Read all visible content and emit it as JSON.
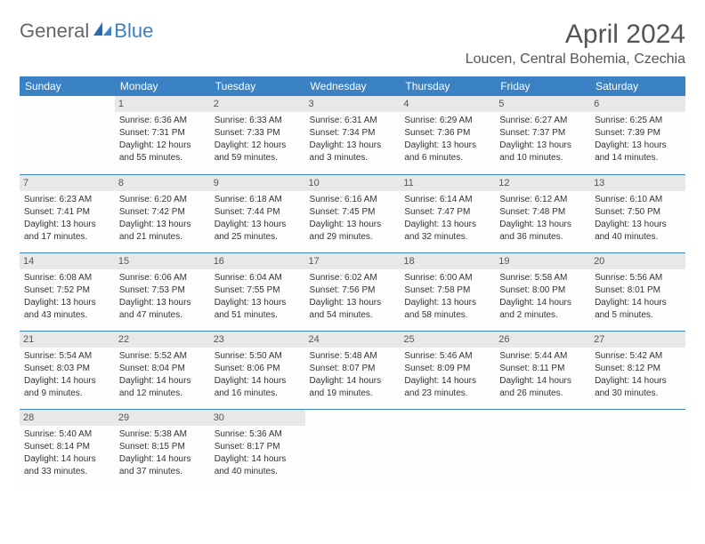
{
  "logo": {
    "textGeneral": "General",
    "textBlue": "Blue"
  },
  "title": "April 2024",
  "location": "Loucen, Central Bohemia, Czechia",
  "colors": {
    "headerBg": "#3b82c4",
    "headerText": "#ffffff",
    "dayNumBg": "#e8e8e8",
    "bodyText": "#333333",
    "titleText": "#555555"
  },
  "dayHeaders": [
    "Sunday",
    "Monday",
    "Tuesday",
    "Wednesday",
    "Thursday",
    "Friday",
    "Saturday"
  ],
  "weeks": [
    [
      null,
      {
        "n": "1",
        "sr": "Sunrise: 6:36 AM",
        "ss": "Sunset: 7:31 PM",
        "d1": "Daylight: 12 hours",
        "d2": "and 55 minutes."
      },
      {
        "n": "2",
        "sr": "Sunrise: 6:33 AM",
        "ss": "Sunset: 7:33 PM",
        "d1": "Daylight: 12 hours",
        "d2": "and 59 minutes."
      },
      {
        "n": "3",
        "sr": "Sunrise: 6:31 AM",
        "ss": "Sunset: 7:34 PM",
        "d1": "Daylight: 13 hours",
        "d2": "and 3 minutes."
      },
      {
        "n": "4",
        "sr": "Sunrise: 6:29 AM",
        "ss": "Sunset: 7:36 PM",
        "d1": "Daylight: 13 hours",
        "d2": "and 6 minutes."
      },
      {
        "n": "5",
        "sr": "Sunrise: 6:27 AM",
        "ss": "Sunset: 7:37 PM",
        "d1": "Daylight: 13 hours",
        "d2": "and 10 minutes."
      },
      {
        "n": "6",
        "sr": "Sunrise: 6:25 AM",
        "ss": "Sunset: 7:39 PM",
        "d1": "Daylight: 13 hours",
        "d2": "and 14 minutes."
      }
    ],
    [
      {
        "n": "7",
        "sr": "Sunrise: 6:23 AM",
        "ss": "Sunset: 7:41 PM",
        "d1": "Daylight: 13 hours",
        "d2": "and 17 minutes."
      },
      {
        "n": "8",
        "sr": "Sunrise: 6:20 AM",
        "ss": "Sunset: 7:42 PM",
        "d1": "Daylight: 13 hours",
        "d2": "and 21 minutes."
      },
      {
        "n": "9",
        "sr": "Sunrise: 6:18 AM",
        "ss": "Sunset: 7:44 PM",
        "d1": "Daylight: 13 hours",
        "d2": "and 25 minutes."
      },
      {
        "n": "10",
        "sr": "Sunrise: 6:16 AM",
        "ss": "Sunset: 7:45 PM",
        "d1": "Daylight: 13 hours",
        "d2": "and 29 minutes."
      },
      {
        "n": "11",
        "sr": "Sunrise: 6:14 AM",
        "ss": "Sunset: 7:47 PM",
        "d1": "Daylight: 13 hours",
        "d2": "and 32 minutes."
      },
      {
        "n": "12",
        "sr": "Sunrise: 6:12 AM",
        "ss": "Sunset: 7:48 PM",
        "d1": "Daylight: 13 hours",
        "d2": "and 36 minutes."
      },
      {
        "n": "13",
        "sr": "Sunrise: 6:10 AM",
        "ss": "Sunset: 7:50 PM",
        "d1": "Daylight: 13 hours",
        "d2": "and 40 minutes."
      }
    ],
    [
      {
        "n": "14",
        "sr": "Sunrise: 6:08 AM",
        "ss": "Sunset: 7:52 PM",
        "d1": "Daylight: 13 hours",
        "d2": "and 43 minutes."
      },
      {
        "n": "15",
        "sr": "Sunrise: 6:06 AM",
        "ss": "Sunset: 7:53 PM",
        "d1": "Daylight: 13 hours",
        "d2": "and 47 minutes."
      },
      {
        "n": "16",
        "sr": "Sunrise: 6:04 AM",
        "ss": "Sunset: 7:55 PM",
        "d1": "Daylight: 13 hours",
        "d2": "and 51 minutes."
      },
      {
        "n": "17",
        "sr": "Sunrise: 6:02 AM",
        "ss": "Sunset: 7:56 PM",
        "d1": "Daylight: 13 hours",
        "d2": "and 54 minutes."
      },
      {
        "n": "18",
        "sr": "Sunrise: 6:00 AM",
        "ss": "Sunset: 7:58 PM",
        "d1": "Daylight: 13 hours",
        "d2": "and 58 minutes."
      },
      {
        "n": "19",
        "sr": "Sunrise: 5:58 AM",
        "ss": "Sunset: 8:00 PM",
        "d1": "Daylight: 14 hours",
        "d2": "and 2 minutes."
      },
      {
        "n": "20",
        "sr": "Sunrise: 5:56 AM",
        "ss": "Sunset: 8:01 PM",
        "d1": "Daylight: 14 hours",
        "d2": "and 5 minutes."
      }
    ],
    [
      {
        "n": "21",
        "sr": "Sunrise: 5:54 AM",
        "ss": "Sunset: 8:03 PM",
        "d1": "Daylight: 14 hours",
        "d2": "and 9 minutes."
      },
      {
        "n": "22",
        "sr": "Sunrise: 5:52 AM",
        "ss": "Sunset: 8:04 PM",
        "d1": "Daylight: 14 hours",
        "d2": "and 12 minutes."
      },
      {
        "n": "23",
        "sr": "Sunrise: 5:50 AM",
        "ss": "Sunset: 8:06 PM",
        "d1": "Daylight: 14 hours",
        "d2": "and 16 minutes."
      },
      {
        "n": "24",
        "sr": "Sunrise: 5:48 AM",
        "ss": "Sunset: 8:07 PM",
        "d1": "Daylight: 14 hours",
        "d2": "and 19 minutes."
      },
      {
        "n": "25",
        "sr": "Sunrise: 5:46 AM",
        "ss": "Sunset: 8:09 PM",
        "d1": "Daylight: 14 hours",
        "d2": "and 23 minutes."
      },
      {
        "n": "26",
        "sr": "Sunrise: 5:44 AM",
        "ss": "Sunset: 8:11 PM",
        "d1": "Daylight: 14 hours",
        "d2": "and 26 minutes."
      },
      {
        "n": "27",
        "sr": "Sunrise: 5:42 AM",
        "ss": "Sunset: 8:12 PM",
        "d1": "Daylight: 14 hours",
        "d2": "and 30 minutes."
      }
    ],
    [
      {
        "n": "28",
        "sr": "Sunrise: 5:40 AM",
        "ss": "Sunset: 8:14 PM",
        "d1": "Daylight: 14 hours",
        "d2": "and 33 minutes."
      },
      {
        "n": "29",
        "sr": "Sunrise: 5:38 AM",
        "ss": "Sunset: 8:15 PM",
        "d1": "Daylight: 14 hours",
        "d2": "and 37 minutes."
      },
      {
        "n": "30",
        "sr": "Sunrise: 5:36 AM",
        "ss": "Sunset: 8:17 PM",
        "d1": "Daylight: 14 hours",
        "d2": "and 40 minutes."
      },
      null,
      null,
      null,
      null
    ]
  ]
}
